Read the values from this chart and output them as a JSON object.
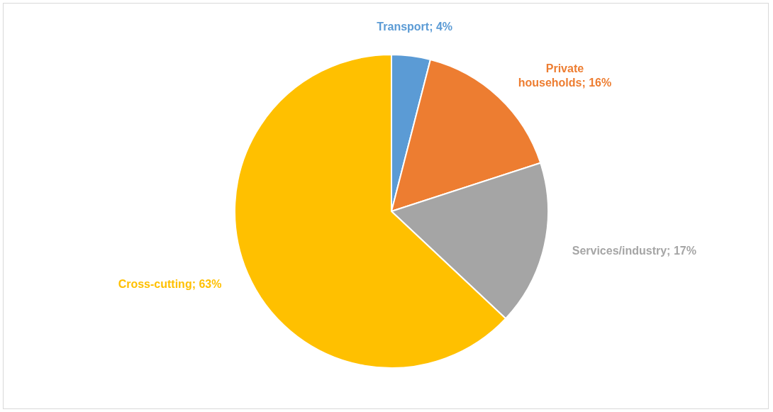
{
  "chart_data": {
    "type": "pie",
    "categories": [
      "Transport",
      "Private households",
      "Services/industry",
      "Cross-cutting"
    ],
    "values": [
      4,
      16,
      17,
      63
    ],
    "value_labels": [
      "4%",
      "16%",
      "17%",
      "63%"
    ],
    "colors": [
      "#5b9bd5",
      "#ed7d31",
      "#a5a5a5",
      "#ffc000"
    ],
    "legend": false
  }
}
